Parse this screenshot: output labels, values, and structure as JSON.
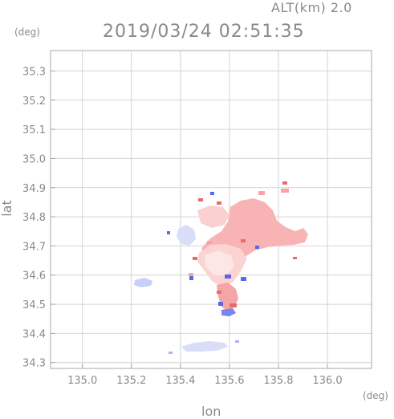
{
  "header": {
    "altitude": "ALT(km) 2.0",
    "timestamp": "2019/03/24 02:51:35"
  },
  "axes": {
    "x_unit": "(deg)",
    "y_unit": "(deg)",
    "x_label": "lon",
    "y_label": "lat",
    "x_ticks": [
      "135.0",
      "135.2",
      "135.4",
      "135.6",
      "135.8",
      "136.0"
    ],
    "y_ticks": [
      "35.3",
      "35.2",
      "35.1",
      "35.0",
      "34.9",
      "34.8",
      "34.7",
      "34.6",
      "34.5",
      "34.4",
      "34.3"
    ],
    "x_range": [
      134.87,
      136.18
    ],
    "y_range": [
      34.28,
      35.37
    ],
    "grid": true
  },
  "colors": {
    "axis": "#a8a8a8",
    "grid": "#d4d4d4",
    "text": "#8a8a8a",
    "positive": "#f7b3b3",
    "positive_strong": "#e86a6a",
    "negative": "#aab2f0",
    "negative_strong": "#5c66e8"
  }
}
